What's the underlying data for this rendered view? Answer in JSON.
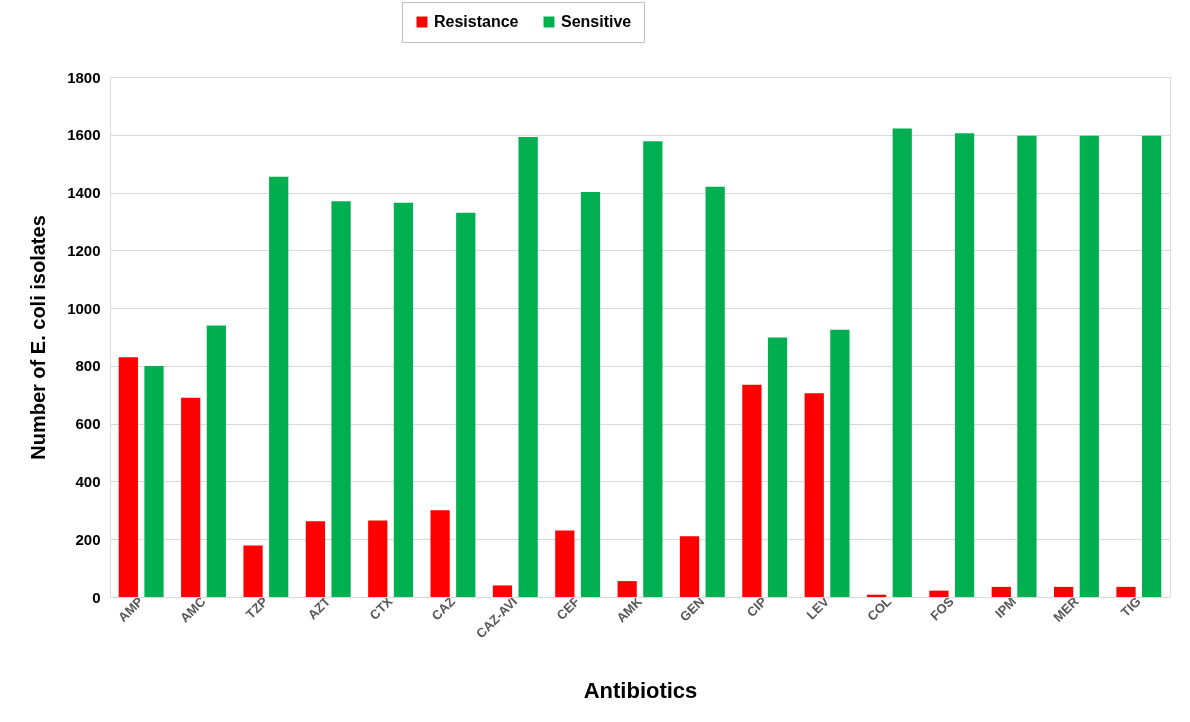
{
  "chart_data": {
    "type": "bar",
    "xlabel": "Antibiotics",
    "ylabel": "Number of E. coli isolates",
    "categories": [
      "AMP",
      "AMC",
      "TZP",
      "AZT",
      "CTX",
      "CAZ",
      "CAZ-AVI",
      "CEF",
      "AMK",
      "GEN",
      "CIP",
      "LEV",
      "COL",
      "FOS",
      "IPM",
      "MER",
      "TIG"
    ],
    "series": [
      {
        "name": "Resistance",
        "color": "#ff0000",
        "values": [
          830,
          690,
          178,
          262,
          265,
          300,
          40,
          230,
          55,
          210,
          735,
          705,
          8,
          22,
          35,
          35,
          35
        ]
      },
      {
        "name": "Sensitive",
        "color": "#00b050",
        "values": [
          800,
          940,
          1455,
          1370,
          1365,
          1330,
          1592,
          1402,
          1578,
          1420,
          898,
          925,
          1622,
          1605,
          1597,
          1597,
          1597
        ]
      }
    ],
    "ylim": [
      0,
      1800
    ],
    "yticks": [
      0,
      200,
      400,
      600,
      800,
      1000,
      1200,
      1400,
      1600,
      1800
    ],
    "grid": "y",
    "legend": "top"
  }
}
